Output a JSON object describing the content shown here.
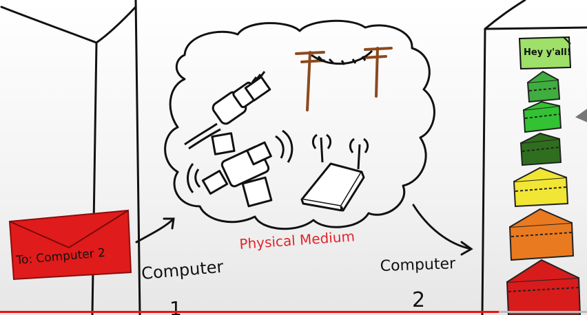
{
  "diagram": {
    "medium_label": "Physical Medium",
    "sender": {
      "label": "Computer",
      "number": "1"
    },
    "receiver": {
      "label": "Computer",
      "number": "2"
    },
    "envelope_label": "To: Computer 2",
    "note_text": "Hey y'all!"
  },
  "envelope_stack_colors": [
    "#3fae3f",
    "#33c233",
    "#2f6e1e",
    "#f1e633",
    "#ea7a1f",
    "#d81b1b"
  ],
  "video_progress": {
    "played_fraction": 0.85
  },
  "colors": {
    "envelope_red": "#e01b1b",
    "medium_label": "#e0252a",
    "pole_brown": "#8b4a1c",
    "note_green": "#9ee06a"
  }
}
